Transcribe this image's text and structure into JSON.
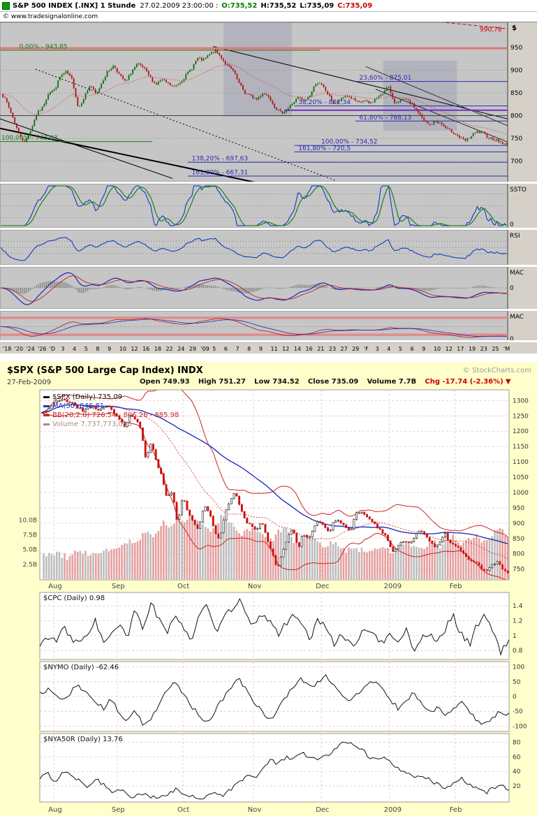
{
  "top_chart": {
    "header": {
      "symbol_title": "S&P 500 INDEX [.INX] 1 Stunde",
      "timestamp": "27.02.2009 23:00:00 :",
      "open": "O:735,52",
      "high": "H:735,52",
      "low": "L:735,09",
      "close": "C:735,09",
      "copyright": "© www.tradesignalonline.com"
    },
    "axis": {
      "currency": "$",
      "extreme": "990,78"
    },
    "panel_labels": {
      "ssto": "SSTO",
      "ssto_zero": "0",
      "rsi": "RSI",
      "mac1": "MAC",
      "mac1_zero": "0",
      "mac2": "MAC",
      "mac2_zero": "0"
    }
  },
  "bottom_chart": {
    "title": "$SPX (S&P 500 Large Cap Index) INDX",
    "copyright": "© StockCharts.com",
    "date": "27-Feb-2009",
    "quote": {
      "open": "Open 749.93",
      "high": "High 751.27",
      "low": "Low 734.52",
      "close": "Close 735.09",
      "volume": "Volume 7.7B",
      "change": "Chg -17.74 (-2.36%)",
      "direction": "▼"
    },
    "legend": {
      "spx": "$SPX (Daily) 735.09",
      "ma50": "MA(50) 846.81",
      "bb": "BB(20,2.0) 726.54 - 806.26 - 885.98",
      "volume": "Volume 7,737,773,056"
    },
    "panel_titles": {
      "cpc": "$CPC (Daily) 0.98",
      "nymo": "$NYMO (Daily) -62.46",
      "nya50r": "$NYA50R (Daily) 13.76"
    }
  },
  "chart_data": [
    {
      "id": "spx-hourly-tradesignal",
      "type": "candlestick",
      "title": "S&P 500 INDEX [.INX] 1 Stunde",
      "last": {
        "open": 735.52,
        "high": 735.52,
        "low": 735.09,
        "close": 735.09
      },
      "ylim": [
        655,
        1005
      ],
      "y_ticks": [
        950,
        900,
        850,
        800,
        750,
        700
      ],
      "extreme_level": 990.78,
      "x_labels": [
        "'18",
        "'20",
        "'24",
        "'26",
        "'D",
        "3",
        "4",
        "5",
        "8",
        "9",
        "10",
        "12",
        "16",
        "18",
        "22",
        "24",
        "29",
        "'09",
        "5",
        "6",
        "7",
        "8",
        "9",
        "11",
        "12",
        "14",
        "16",
        "21",
        "23",
        "27",
        "29",
        "'F",
        "3",
        "4",
        "5",
        "6",
        "9",
        "10",
        "12",
        "17",
        "19",
        "23",
        "25",
        "'M"
      ],
      "close_path": [
        851,
        828,
        796,
        760,
        741,
        768,
        804,
        818,
        851,
        857,
        887,
        896,
        878,
        816,
        842,
        868,
        845,
        875,
        899,
        910,
        887,
        873,
        899,
        913,
        904,
        885,
        868,
        879,
        871,
        863,
        872,
        887,
        903,
        926,
        921,
        934,
        943,
        928,
        910,
        899,
        871,
        850,
        843,
        836,
        850,
        843,
        820,
        806,
        812,
        827,
        840,
        832,
        846,
        874,
        866,
        846,
        826,
        833,
        845,
        838,
        827,
        833,
        826,
        838,
        845,
        869,
        828,
        833,
        835,
        826,
        810,
        789,
        779,
        788,
        782,
        770,
        764,
        753,
        744,
        754,
        764,
        761,
        752,
        748,
        741,
        735
      ],
      "fib_levels": [
        {
          "label": "0,00% - 943,85",
          "value": 943.85,
          "color": "#1a7a1a",
          "x1": 0.0,
          "x2": 0.63,
          "lx": 0.035
        },
        {
          "label": "100,00% - 743,03",
          "value": 743.03,
          "color": "#1a7a1a",
          "x1": 0.0,
          "x2": 0.3,
          "lx": 0.0
        },
        {
          "label": "23,60% - 875,01",
          "value": 875.01,
          "color": "#2a2ab0",
          "x1": 0.7,
          "x2": 1.0,
          "lx": 0.705
        },
        {
          "label": "38,20% - 821,34",
          "value": 821.34,
          "color": "#2a2ab0",
          "x1": 0.58,
          "x2": 1.0,
          "lx": 0.585
        },
        {
          "label": "61,80% - 788,13",
          "value": 788.13,
          "color": "#2a2ab0",
          "x1": 0.7,
          "x2": 1.0,
          "lx": 0.705
        },
        {
          "label": "100,00% - 734,52",
          "value": 734.52,
          "color": "#2a2ab0",
          "x1": 0.58,
          "x2": 1.0,
          "lx": 0.63
        },
        {
          "label": "161,80% - 720,5",
          "value": 720.5,
          "color": "#2a2ab0",
          "x1": 0.58,
          "x2": 1.0,
          "lx": 0.585
        },
        {
          "label": "138,20% - 697,63",
          "value": 697.63,
          "color": "#2a2ab0",
          "x1": 0.37,
          "x2": 1.0,
          "lx": 0.375
        },
        {
          "label": "161,80% - 667,31",
          "value": 667.31,
          "color": "#2a2ab0",
          "x1": 0.37,
          "x2": 1.0,
          "lx": 0.375
        }
      ],
      "h_lines": [
        {
          "value": 948,
          "color": "#e07878",
          "width": 3,
          "x1": 0.0,
          "x2": 1.0
        },
        {
          "value": 800,
          "color": "#404040",
          "width": 1,
          "x1": 0.0,
          "x2": 1.0
        },
        {
          "value": 812,
          "color": "#7030c0",
          "width": 2,
          "x1": 0.56,
          "x2": 1.0
        }
      ],
      "trend_lines": [
        {
          "x1": 0.42,
          "p1": 952,
          "x2": 1.0,
          "p2": 793,
          "color": "#000000",
          "width": 1
        },
        {
          "x1": 0.0,
          "p1": 793,
          "x2": 0.34,
          "p2": 662,
          "color": "#000000",
          "width": 1
        },
        {
          "x1": 0.0,
          "p1": 772,
          "x2": 0.56,
          "p2": 640,
          "color": "#000000",
          "width": 2
        },
        {
          "x1": 0.07,
          "p1": 902,
          "x2": 0.66,
          "p2": 658,
          "color": "#000000",
          "width": 1,
          "dash": "2,3"
        },
        {
          "x1": 0.55,
          "p1": 1042,
          "x2": 1.0,
          "p2": 990.78,
          "color": "#cc0000",
          "width": 1,
          "dash": "5,3"
        },
        {
          "x1": 0.72,
          "p1": 908,
          "x2": 1.0,
          "p2": 778,
          "color": "#303030",
          "width": 1
        },
        {
          "x1": 0.74,
          "p1": 858,
          "x2": 1.0,
          "p2": 742,
          "color": "#303030",
          "width": 1
        }
      ],
      "shaded_zones": [
        {
          "x1": 0.44,
          "x2": 0.575,
          "p1": 1005,
          "p2": 798
        },
        {
          "x1": 0.755,
          "x2": 0.9,
          "p1": 921,
          "p2": 767
        }
      ],
      "indicators": [
        "SSTO",
        "RSI",
        "MACD",
        "MACD slow"
      ]
    },
    {
      "id": "spx-daily-stockcharts",
      "type": "candlestick+volume",
      "symbol": "$SPX",
      "ohlc": {
        "open": 749.93,
        "high": 751.27,
        "low": 734.52,
        "close": 735.09
      },
      "volume_shares": 7737773056,
      "change": -17.74,
      "change_pct": -2.36,
      "ma50_last": 846.81,
      "bb_last": {
        "lower": 726.54,
        "middle": 806.26,
        "upper": 885.98
      },
      "ylim": [
        715,
        1335
      ],
      "y_ticks": [
        1300,
        1250,
        1200,
        1150,
        1100,
        1050,
        1000,
        950,
        900,
        850,
        800,
        750
      ],
      "vol_ticks": [
        "10.0B",
        "7.5B",
        "5.0B",
        "2.5B"
      ],
      "vol_tick_values": [
        10,
        7.5,
        5,
        2.5
      ],
      "vol_max": 13,
      "months": [
        "Aug",
        "Sep",
        "Oct",
        "Nov",
        "Dec",
        "2009",
        "Feb"
      ],
      "month_pos": [
        0.03,
        0.165,
        0.305,
        0.455,
        0.6,
        0.745,
        0.885
      ],
      "close": [
        1260,
        1267,
        1284,
        1296,
        1305,
        1298,
        1292,
        1278,
        1266,
        1278,
        1281,
        1267,
        1282,
        1277,
        1255,
        1240,
        1213,
        1255,
        1239,
        1207,
        1106,
        1161,
        1099,
        1056,
        984,
        1003,
        899,
        985,
        940,
        908,
        876,
        955,
        940,
        876,
        848,
        930,
        968,
        1005,
        952,
        904,
        898,
        873,
        911,
        852,
        806,
        752,
        800,
        851,
        887,
        816,
        870,
        845,
        888,
        909,
        890,
        868,
        913,
        904,
        887,
        871,
        931,
        934,
        927,
        909,
        890,
        870,
        850,
        805,
        827,
        843,
        838,
        845,
        874,
        866,
        845,
        825,
        835,
        869,
        833,
        827,
        811,
        789,
        778,
        770,
        752,
        743,
        764,
        773,
        752,
        735
      ],
      "volume_b": [
        4.2,
        3.8,
        4.5,
        4.0,
        3.6,
        4.4,
        4.8,
        4.1,
        3.9,
        4.6,
        5.2,
        4.7,
        5.5,
        6.8,
        6.2,
        7.4,
        8.1,
        7.2,
        9.5,
        8.8,
        10.4,
        9.8,
        11.2,
        10.1,
        9.2,
        8.5,
        9.8,
        10.6,
        9.4,
        8.2,
        7.6,
        8.8,
        8.0,
        7.2,
        6.5,
        7.8,
        8.4,
        7.0,
        6.2,
        6.8,
        7.5,
        6.4,
        5.8,
        6.6,
        5.4,
        4.8,
        5.6,
        5.0,
        4.4,
        5.2,
        5.8,
        5.1,
        4.6,
        5.4,
        6.2,
        5.6,
        5.0,
        5.8,
        6.4,
        5.7,
        6.6,
        7.2,
        6.1,
        6.8,
        7.4,
        6.5,
        7.0,
        7.8,
        8.2,
        7.7
      ],
      "sub_panels": [
        {
          "id": "cpc",
          "title": "$CPC (Daily) 0.98",
          "last": 0.98,
          "ylim": [
            0.68,
            1.58
          ],
          "ticks": [
            1.4,
            1.2,
            1.0,
            0.8
          ],
          "values": [
            0.85,
            1.0,
            0.92,
            1.1,
            0.95,
            0.88,
            1.05,
            1.2,
            0.9,
            1.0,
            1.15,
            0.95,
            1.35,
            1.1,
            1.45,
            1.2,
            1.0,
            1.3,
            1.15,
            0.92,
            1.25,
            1.4,
            1.05,
            1.2,
            1.35,
            1.5,
            1.25,
            1.1,
            1.3,
            1.2,
            1.0,
            1.18,
            1.32,
            1.1,
            0.95,
            1.22,
            1.08,
            0.9,
            1.05,
            0.85,
            0.95,
            1.12,
            1.0,
            0.88,
            1.02,
            0.92,
            1.08,
            0.82,
            0.95,
            1.05,
            0.9,
            1.1,
            1.25,
            1.02,
            0.88,
            1.15,
            1.3,
            1.05,
            0.75,
            0.98
          ]
        },
        {
          "id": "nymo",
          "title": "$NYMO (Daily) -62.46",
          "last": -62.46,
          "ylim": [
            -118,
            118
          ],
          "ticks": [
            100,
            50,
            0,
            -50,
            -100
          ],
          "values": [
            10,
            25,
            5,
            -15,
            20,
            35,
            10,
            -20,
            -40,
            -10,
            -60,
            -80,
            -40,
            -100,
            -70,
            -30,
            20,
            50,
            10,
            -30,
            -60,
            -90,
            -50,
            -10,
            30,
            60,
            20,
            -20,
            -50,
            -80,
            -40,
            0,
            40,
            60,
            30,
            50,
            70,
            40,
            10,
            -20,
            10,
            35,
            55,
            25,
            -10,
            -40,
            -15,
            15,
            -25,
            -55,
            -35,
            -65,
            -45,
            -20,
            -50,
            -80,
            -95,
            -70,
            -50,
            -62
          ]
        },
        {
          "id": "nya50r",
          "title": "$NYA50R (Daily) 13.76",
          "last": 13.76,
          "ylim": [
            -2,
            92
          ],
          "ticks": [
            80,
            60,
            40,
            20
          ],
          "values": [
            30,
            38,
            25,
            42,
            35,
            28,
            20,
            30,
            22,
            12,
            18,
            8,
            5,
            10,
            4,
            3,
            8,
            15,
            10,
            5,
            3,
            6,
            12,
            8,
            15,
            25,
            35,
            30,
            45,
            55,
            50,
            60,
            58,
            65,
            60,
            55,
            62,
            70,
            78,
            82,
            75,
            65,
            55,
            60,
            52,
            45,
            38,
            30,
            35,
            28,
            22,
            18,
            25,
            30,
            22,
            15,
            10,
            18,
            22,
            14
          ]
        }
      ]
    }
  ]
}
